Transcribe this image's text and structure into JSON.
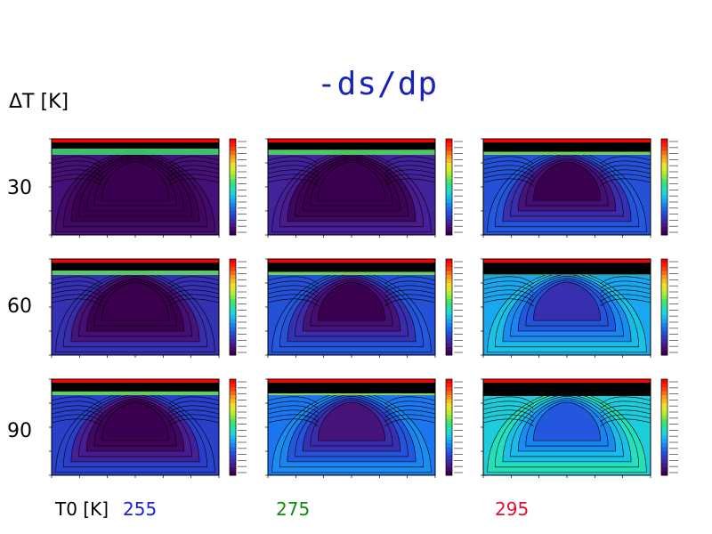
{
  "title": "-ds/dp",
  "row_axis_label": "ΔT [K]",
  "col_axis_label": "T0 [K]",
  "rows": [
    "30",
    "60",
    "90"
  ],
  "columns": [
    {
      "label": "255",
      "color": "#1a22d8"
    },
    {
      "label": "275",
      "color": "#0f8c0f"
    },
    {
      "label": "295",
      "color": "#e01030"
    }
  ],
  "colormap": [
    "#3b0050",
    "#4a1a8c",
    "#2a3ec8",
    "#1c6ef0",
    "#17b0f0",
    "#1fe0d0",
    "#35e070",
    "#a8ee30",
    "#f0e82a",
    "#f8a020",
    "#ff4010",
    "#ff0000"
  ],
  "chart_data": {
    "type": "heatmap",
    "title": "-ds/dp",
    "grid": "3x3 small-multiples",
    "row_variable": "ΔT [K]",
    "row_values": [
      30,
      60,
      90
    ],
    "col_variable": "T0 [K]",
    "col_values": [
      255,
      275,
      295
    ],
    "panels": [
      {
        "row": 30,
        "col": 255,
        "intensity": 0.0
      },
      {
        "row": 30,
        "col": 275,
        "intensity": 0.12
      },
      {
        "row": 30,
        "col": 295,
        "intensity": 0.35
      },
      {
        "row": 60,
        "col": 255,
        "intensity": 0.2
      },
      {
        "row": 60,
        "col": 275,
        "intensity": 0.35
      },
      {
        "row": 60,
        "col": 295,
        "intensity": 0.65
      },
      {
        "row": 90,
        "col": 255,
        "intensity": 0.28
      },
      {
        "row": 90,
        "col": 275,
        "intensity": 0.5
      },
      {
        "row": 90,
        "col": 295,
        "intensity": 0.8
      }
    ]
  }
}
